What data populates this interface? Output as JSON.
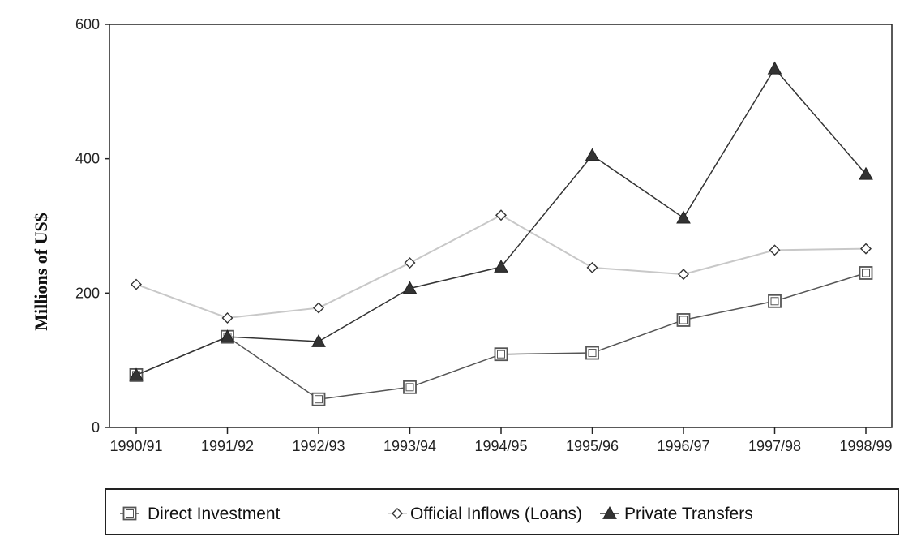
{
  "chart_data": {
    "type": "line",
    "ylabel": "Millions of US$",
    "ylim": [
      0,
      600
    ],
    "yticks": [
      "0",
      "200",
      "400",
      "600"
    ],
    "categories": [
      "1990/91",
      "1991/92",
      "1992/93",
      "1993/94",
      "1994/95",
      "1995/96",
      "1996/97",
      "1997/98",
      "1998/99"
    ],
    "series": [
      {
        "name": "Direct Investment",
        "marker": "square",
        "color": "#555555",
        "values": [
          78,
          135,
          42,
          60,
          109,
          111,
          160,
          188,
          230
        ]
      },
      {
        "name": "Official Inflows (Loans)",
        "marker": "diamond",
        "color": "#c8c8c8",
        "values": [
          213,
          163,
          178,
          245,
          316,
          238,
          228,
          264,
          266
        ]
      },
      {
        "name": "Private Transfers",
        "marker": "triangle",
        "color": "#333333",
        "values": [
          78,
          135,
          128,
          207,
          239,
          405,
          312,
          534,
          377
        ]
      }
    ],
    "legend_position": "bottom",
    "grid": false
  }
}
